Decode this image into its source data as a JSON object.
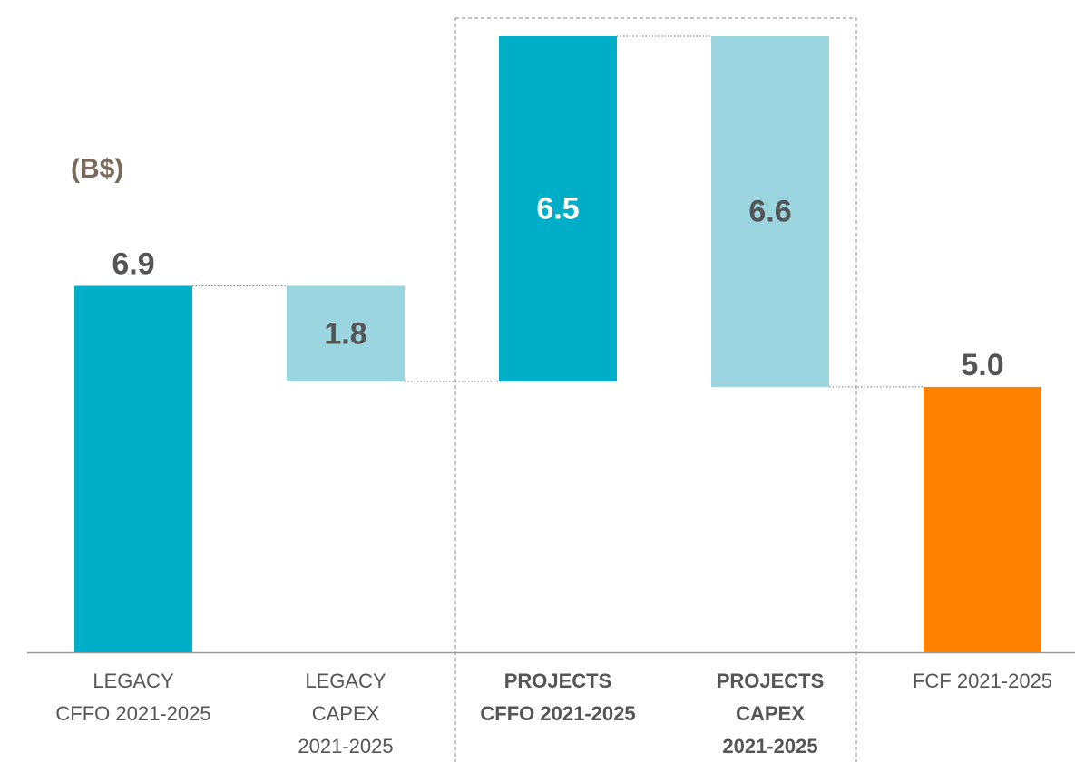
{
  "chart_data": {
    "type": "waterfall",
    "annotation": "(B$)",
    "categories": [
      "LEGACY\nCFFO 2021-2025",
      "LEGACY\nCAPEX\n2021-2025",
      "PROJECTS\nCFFO 2021-2025",
      "PROJECTS\nCAPEX\n2021-2025",
      "FCF 2021-2025"
    ],
    "values": [
      6.9,
      -1.8,
      6.5,
      -6.6,
      5.0
    ],
    "value_labels": [
      "6.9",
      "1.8",
      "6.5",
      "6.6",
      "5.0"
    ],
    "colors": [
      "#00aec7",
      "#9bd5df",
      "#00aec7",
      "#9bd5df",
      "#ff8200"
    ]
  }
}
